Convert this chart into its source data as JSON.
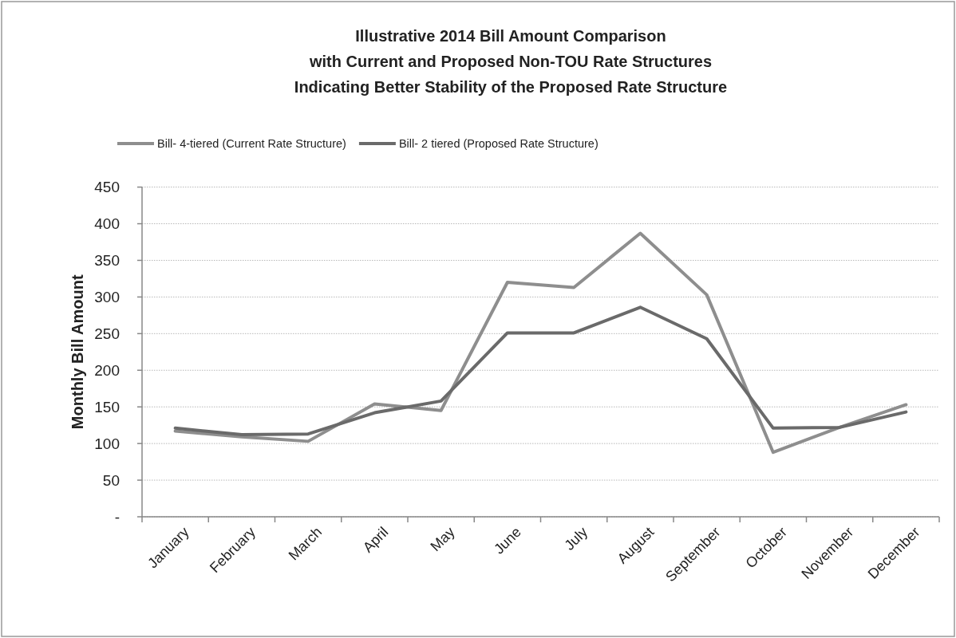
{
  "chart_data": {
    "type": "line",
    "title": "Illustrative 2014 Bill Amount Comparison\nwith Current and Proposed Non-TOU Rate Structures\nIndicating Better Stability of the Proposed Rate Structure",
    "ylabel": "Monthly Bill Amount",
    "categories": [
      "January",
      "February",
      "March",
      "April",
      "May",
      "June",
      "July",
      "August",
      "September",
      "October",
      "November",
      "December"
    ],
    "series": [
      {
        "name": "Bill- 4-tiered (Current Rate Structure)",
        "color": "#8e8e8e",
        "values": [
          117,
          109,
          103,
          154,
          145,
          320,
          313,
          387,
          303,
          88,
          122,
          153
        ]
      },
      {
        "name": "Bill- 2 tiered (Proposed Rate Structure)",
        "color": "#6a6a6a",
        "values": [
          121,
          112,
          113,
          142,
          158,
          251,
          251,
          286,
          243,
          121,
          122,
          143
        ]
      }
    ],
    "ylim": [
      0,
      450
    ],
    "yticks": [
      {
        "value": 0,
        "label": "-"
      },
      50,
      100,
      150,
      200,
      250,
      300,
      350,
      400,
      450
    ],
    "grid": "y",
    "legend": "top"
  }
}
